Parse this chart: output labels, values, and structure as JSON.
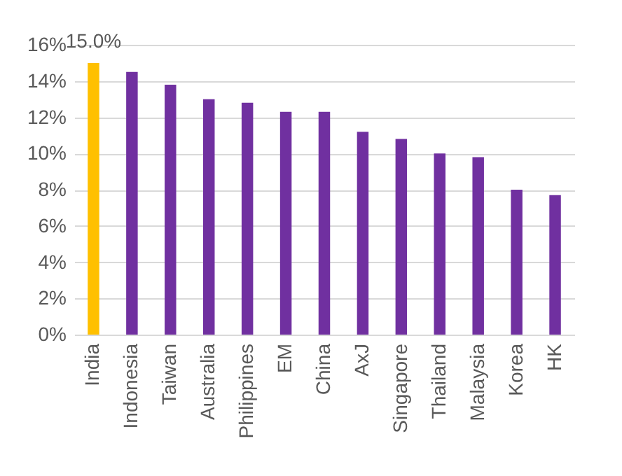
{
  "chart_data": {
    "type": "bar",
    "categories": [
      "India",
      "Indonesia",
      "Taiwan",
      "Australia",
      "Philippines",
      "EM",
      "China",
      "AxJ",
      "Singapore",
      "Thailand",
      "Malaysia",
      "Korea",
      "HK"
    ],
    "values": [
      15.0,
      14.5,
      13.8,
      13.0,
      12.8,
      12.3,
      12.3,
      11.2,
      10.8,
      10.0,
      9.8,
      8.0,
      7.7
    ],
    "colors": [
      "#ffc000",
      "#7030a0",
      "#7030a0",
      "#7030a0",
      "#7030a0",
      "#7030a0",
      "#7030a0",
      "#7030a0",
      "#7030a0",
      "#7030a0",
      "#7030a0",
      "#7030a0",
      "#7030a0"
    ],
    "value_labels": [
      "15.0%",
      null,
      null,
      null,
      null,
      null,
      null,
      null,
      null,
      null,
      null,
      null,
      null
    ],
    "ylim": [
      0,
      16
    ],
    "yticks": [
      {
        "value": 0,
        "label": "0%"
      },
      {
        "value": 2,
        "label": "2%"
      },
      {
        "value": 4,
        "label": "4%"
      },
      {
        "value": 6,
        "label": "6%"
      },
      {
        "value": 8,
        "label": "8%"
      },
      {
        "value": 10,
        "label": "10%"
      },
      {
        "value": 12,
        "label": "12%"
      },
      {
        "value": 14,
        "label": "14%"
      },
      {
        "value": 16,
        "label": "16%"
      }
    ],
    "grid": "y"
  }
}
